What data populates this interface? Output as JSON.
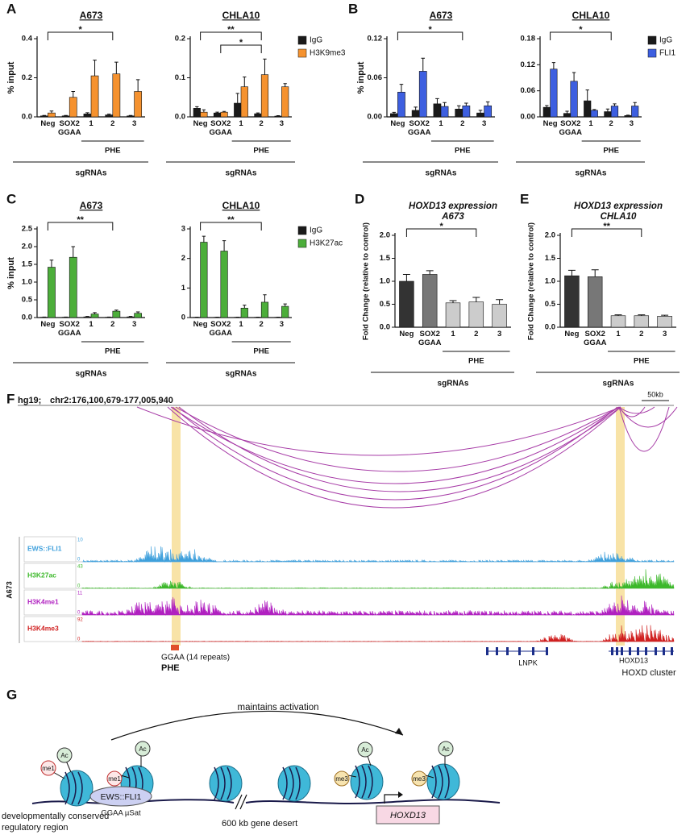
{
  "panel_letters": [
    "A",
    "B",
    "C",
    "D",
    "E",
    "F",
    "G"
  ],
  "chart_data": [
    {
      "type": "bar",
      "title": "A673",
      "ylabel": "% input",
      "categories": [
        "Neg",
        "SOX2 GGAA",
        "1",
        "2",
        "3"
      ],
      "group_label": "PHE",
      "xlabel": "sgRNAs",
      "ylim": [
        0,
        0.4
      ],
      "yticks": [
        {
          "value": 0,
          "label": "0.0"
        },
        {
          "value": 0.2,
          "label": "0.2"
        },
        {
          "value": 0.4,
          "label": "0.4"
        }
      ],
      "series": [
        {
          "name": "IgG",
          "color": "#1a1a1a",
          "values": [
            0.005,
            0.005,
            0.015,
            0.01,
            0.005
          ],
          "errors": [
            0.002,
            0.002,
            0.006,
            0.004,
            0.002
          ]
        },
        {
          "name": "H3K9me3",
          "color": "#f5922f",
          "values": [
            0.02,
            0.1,
            0.21,
            0.22,
            0.13
          ],
          "errors": [
            0.01,
            0.03,
            0.08,
            0.06,
            0.06
          ]
        }
      ],
      "annotations": [
        "*"
      ]
    },
    {
      "type": "bar",
      "title": "CHLA10",
      "categories": [
        "Neg",
        "SOX2 GGAA",
        "1",
        "2",
        "3"
      ],
      "group_label": "PHE",
      "xlabel": "sgRNAs",
      "ylim": [
        0,
        0.2
      ],
      "yticks": [
        {
          "value": 0,
          "label": "0.0"
        },
        {
          "value": 0.1,
          "label": "0.1"
        },
        {
          "value": 0.2,
          "label": "0.2"
        }
      ],
      "series": [
        {
          "name": "IgG",
          "color": "#1a1a1a",
          "values": [
            0.022,
            0.01,
            0.035,
            0.008,
            0.002
          ],
          "errors": [
            0.004,
            0.002,
            0.025,
            0.002,
            0.001
          ]
        },
        {
          "name": "H3K9me3",
          "color": "#f5922f",
          "values": [
            0.012,
            0.012,
            0.077,
            0.108,
            0.077
          ],
          "errors": [
            0.006,
            0.002,
            0.025,
            0.04,
            0.008
          ]
        }
      ],
      "legend": "right",
      "annotations": [
        "**",
        "*"
      ]
    },
    {
      "type": "bar",
      "title": "A673",
      "ylabel": "% input",
      "categories": [
        "Neg",
        "SOX2 GGAA",
        "1",
        "2",
        "3"
      ],
      "group_label": "PHE",
      "xlabel": "sgRNAs",
      "ylim": [
        0,
        0.12
      ],
      "yticks": [
        {
          "value": 0,
          "label": "0.00"
        },
        {
          "value": 0.06,
          "label": "0.06"
        },
        {
          "value": 0.12,
          "label": "0.12"
        }
      ],
      "series": [
        {
          "name": "IgG",
          "color": "#1a1a1a",
          "values": [
            0.005,
            0.01,
            0.02,
            0.012,
            0.006
          ],
          "errors": [
            0.002,
            0.005,
            0.008,
            0.005,
            0.004
          ]
        },
        {
          "name": "FLI1",
          "color": "#3d5fe0",
          "values": [
            0.038,
            0.07,
            0.016,
            0.017,
            0.017
          ],
          "errors": [
            0.012,
            0.02,
            0.006,
            0.004,
            0.006
          ]
        }
      ],
      "annotations": [
        "*"
      ]
    },
    {
      "type": "bar",
      "title": "CHLA10",
      "categories": [
        "Neg",
        "SOX2 GGAA",
        "1",
        "2",
        "3"
      ],
      "group_label": "PHE",
      "xlabel": "sgRNAs",
      "ylim": [
        0,
        0.18
      ],
      "yticks": [
        {
          "value": 0,
          "label": "0.00"
        },
        {
          "value": 0.06,
          "label": "0.06"
        },
        {
          "value": 0.12,
          "label": "0.12"
        },
        {
          "value": 0.18,
          "label": "0.18"
        }
      ],
      "series": [
        {
          "name": "IgG",
          "color": "#1a1a1a",
          "values": [
            0.022,
            0.008,
            0.037,
            0.012,
            0.003
          ],
          "errors": [
            0.004,
            0.005,
            0.025,
            0.006,
            0.001
          ]
        },
        {
          "name": "FLI1",
          "color": "#3d5fe0",
          "values": [
            0.11,
            0.082,
            0.015,
            0.025,
            0.025
          ],
          "errors": [
            0.015,
            0.02,
            0.002,
            0.005,
            0.008
          ]
        }
      ],
      "legend": "right",
      "annotations": [
        "*"
      ]
    },
    {
      "type": "bar",
      "title": "A673",
      "ylabel": "% input",
      "categories": [
        "Neg",
        "SOX2 GGAA",
        "1",
        "2",
        "3"
      ],
      "group_label": "PHE",
      "xlabel": "sgRNAs",
      "ylim": [
        0,
        2.5
      ],
      "yticks": [
        {
          "value": 0,
          "label": "0.0"
        },
        {
          "value": 0.5,
          "label": "0.5"
        },
        {
          "value": 1,
          "label": "1.0"
        },
        {
          "value": 1.5,
          "label": "1.5"
        },
        {
          "value": 2,
          "label": "2.0"
        },
        {
          "value": 2.5,
          "label": "2.5"
        }
      ],
      "series": [
        {
          "name": "IgG",
          "color": "#1a1a1a",
          "values": [
            0.01,
            0.01,
            0.02,
            0.01,
            0.02
          ],
          "errors": [
            0.005,
            0.005,
            0.01,
            0.005,
            0.01
          ]
        },
        {
          "name": "H3K27ac",
          "color": "#4cae3a",
          "values": [
            1.42,
            1.7,
            0.1,
            0.18,
            0.12
          ],
          "errors": [
            0.2,
            0.3,
            0.04,
            0.03,
            0.04
          ]
        }
      ],
      "annotations": [
        "**"
      ]
    },
    {
      "type": "bar",
      "title": "CHLA10",
      "categories": [
        "Neg",
        "SOX2 GGAA",
        "1",
        "2",
        "3"
      ],
      "group_label": "PHE",
      "xlabel": "sgRNAs",
      "ylim": [
        0,
        3
      ],
      "yticks": [
        0,
        1,
        2,
        3
      ],
      "series": [
        {
          "name": "IgG",
          "color": "#1a1a1a",
          "values": [
            0.01,
            0.01,
            0.01,
            0.01,
            0.01
          ],
          "errors": [
            0.005,
            0.005,
            0.005,
            0.005,
            0.005
          ]
        },
        {
          "name": "H3K27ac",
          "color": "#4cae3a",
          "values": [
            2.55,
            2.25,
            0.32,
            0.52,
            0.38
          ],
          "errors": [
            0.2,
            0.35,
            0.1,
            0.25,
            0.08
          ]
        }
      ],
      "legend": "right",
      "annotations": [
        "**"
      ]
    },
    {
      "type": "bar",
      "title": "HOXD13 expression",
      "subtitle": "A673",
      "ylabel": "Fold Change (relative to control)",
      "categories": [
        "Neg",
        "SOX2 GGAA",
        "1",
        "2",
        "3"
      ],
      "group_label": "PHE",
      "xlabel": "sgRNAs",
      "ylim": [
        0,
        2
      ],
      "yticks": [
        {
          "value": 0,
          "label": "0.0"
        },
        {
          "value": 0.5,
          "label": "0.5"
        },
        {
          "value": 1,
          "label": "1.0"
        },
        {
          "value": 1.5,
          "label": "1.5"
        },
        {
          "value": 2,
          "label": "2.0"
        }
      ],
      "values": [
        1.0,
        1.15,
        0.53,
        0.55,
        0.5
      ],
      "errors": [
        0.15,
        0.08,
        0.05,
        0.1,
        0.1
      ],
      "colors": [
        "#333333",
        "#777777",
        "#cccccc",
        "#cccccc",
        "#cccccc"
      ],
      "annotations": [
        "*"
      ]
    },
    {
      "type": "bar",
      "title": "HOXD13 expression",
      "subtitle": "CHLA10",
      "ylabel": "Fold Change (relative to control)",
      "categories": [
        "Neg",
        "SOX2 GGAA",
        "1",
        "2",
        "3"
      ],
      "group_label": "PHE",
      "xlabel": "sgRNAs",
      "ylim": [
        0,
        2
      ],
      "yticks": [
        {
          "value": 0,
          "label": "0.0"
        },
        {
          "value": 0.5,
          "label": "0.5"
        },
        {
          "value": 1,
          "label": "1.0"
        },
        {
          "value": 1.5,
          "label": "1.5"
        },
        {
          "value": 2,
          "label": "2.0"
        }
      ],
      "values": [
        1.12,
        1.1,
        0.25,
        0.25,
        0.24
      ],
      "errors": [
        0.12,
        0.15,
        0.02,
        0.02,
        0.02
      ],
      "colors": [
        "#333333",
        "#777777",
        "#cccccc",
        "#cccccc",
        "#cccccc"
      ],
      "annotations": [
        "**"
      ]
    }
  ],
  "genome_view": {
    "assembly": "hg19;",
    "locus": "chr2:176,100,679-177,005,940",
    "scale": "50kb",
    "cell_line": "A673",
    "tracks": [
      {
        "name": "EWS::FLI1",
        "max": "10",
        "min": "0",
        "color": "#3fa0dc"
      },
      {
        "name": "H3K27ac",
        "max": "43",
        "min": "0",
        "color": "#3cb82a"
      },
      {
        "name": "H3K4me1",
        "max": "11",
        "min": "0",
        "color": "#b020c0"
      },
      {
        "name": "H3K4me3",
        "max": "92",
        "min": "0",
        "color": "#d02020"
      }
    ],
    "element": "GGAA (14 repeats)",
    "element_name": "PHE",
    "genes": [
      "LNPK",
      "HOXD13"
    ],
    "cluster": "HOXD cluster"
  },
  "schematic": {
    "arrow_label": "maintains activation",
    "acetyl": "Ac",
    "mono": "me1",
    "tri": "me3",
    "factor": "EWS::FLI1",
    "microsat": "GGAA µSat",
    "gene": "HOXD13",
    "region_line1": "developmentally conserved",
    "region_line2": "regulatory region",
    "desert": "600 kb gene desert"
  }
}
